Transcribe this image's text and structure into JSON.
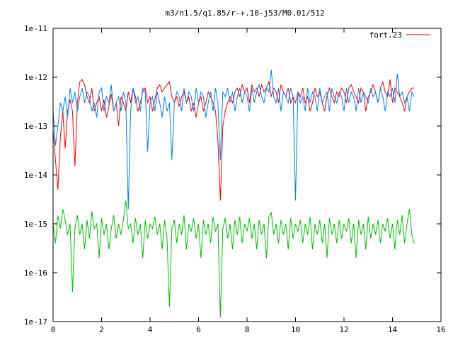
{
  "chart_data": {
    "type": "line",
    "title": "m3/n1.5/q1.85/r-+.10-j53/M0.01/512",
    "xlabel": "",
    "ylabel": "",
    "xlim": [
      0,
      16
    ],
    "ylim": [
      1e-17,
      1e-11
    ],
    "yscale": "log",
    "grid": false,
    "legend_position": "top-right",
    "x_ticks": [
      0,
      2,
      4,
      6,
      8,
      10,
      12,
      14,
      16
    ],
    "x_tick_labels": [
      "0",
      "2",
      "4",
      "6",
      "8",
      "10",
      "12",
      "14",
      "16"
    ],
    "y_ticks": [
      1e-17,
      1e-16,
      1e-15,
      1e-14,
      1e-13,
      1e-12,
      1e-11
    ],
    "y_tick_labels": [
      "1e-17",
      "1e-16",
      "1e-15",
      "1e-14",
      "1e-13",
      "1e-12",
      "1e-11"
    ],
    "series": [
      {
        "name": "fort.23",
        "color": "#ff0000",
        "x": [
          0.0,
          0.1,
          0.2,
          0.3,
          0.4,
          0.5,
          0.6,
          0.7,
          0.8,
          0.9,
          1.0,
          1.1,
          1.2,
          1.3,
          1.4,
          1.5,
          1.6,
          1.7,
          1.8,
          1.9,
          2.0,
          2.1,
          2.2,
          2.3,
          2.4,
          2.5,
          2.6,
          2.7,
          2.8,
          2.9,
          3.0,
          3.1,
          3.2,
          3.3,
          3.4,
          3.5,
          3.6,
          3.7,
          3.8,
          3.9,
          4.0,
          4.1,
          4.2,
          4.3,
          4.4,
          4.5,
          4.6,
          4.7,
          4.8,
          4.9,
          5.0,
          5.1,
          5.2,
          5.3,
          5.4,
          5.5,
          5.6,
          5.7,
          5.8,
          5.9,
          6.0,
          6.1,
          6.2,
          6.3,
          6.4,
          6.5,
          6.6,
          6.7,
          6.8,
          6.9,
          7.0,
          7.1,
          7.2,
          7.3,
          7.4,
          7.5,
          7.6,
          7.7,
          7.8,
          7.9,
          8.0,
          8.1,
          8.2,
          8.3,
          8.4,
          8.5,
          8.6,
          8.7,
          8.8,
          8.9,
          9.0,
          9.1,
          9.2,
          9.3,
          9.4,
          9.5,
          9.6,
          9.7,
          9.8,
          9.9,
          10.0,
          10.1,
          10.2,
          10.3,
          10.4,
          10.5,
          10.6,
          10.7,
          10.8,
          10.9,
          11.0,
          11.1,
          11.2,
          11.3,
          11.4,
          11.5,
          11.6,
          11.7,
          11.8,
          11.9,
          12.0,
          12.1,
          12.2,
          12.3,
          12.4,
          12.5,
          12.6,
          12.7,
          12.8,
          12.9,
          13.0,
          13.1,
          13.2,
          13.3,
          13.4,
          13.5,
          13.6,
          13.7,
          13.8,
          13.9,
          14.0,
          14.1,
          14.2,
          14.3,
          14.4,
          14.5,
          14.6,
          14.7,
          14.8,
          14.9
        ],
        "y": [
          8e-14,
          2e-14,
          5e-15,
          6e-14,
          2e-13,
          3.5e-14,
          2e-13,
          3.5e-13,
          2e-13,
          1.5e-14,
          3e-13,
          8e-13,
          9e-13,
          7e-13,
          4e-13,
          3e-13,
          6e-13,
          2e-13,
          3e-13,
          4e-13,
          2e-13,
          3.5e-13,
          1.5e-13,
          2.5e-13,
          4.5e-13,
          2e-13,
          3e-13,
          1e-13,
          4e-13,
          3e-13,
          2e-13,
          5e-13,
          3e-13,
          6e-13,
          4e-13,
          2e-13,
          3e-13,
          5e-13,
          6e-13,
          3e-13,
          4e-13,
          2e-13,
          3.5e-13,
          6e-13,
          7e-13,
          5e-13,
          6e-13,
          7e-13,
          8e-13,
          4e-13,
          3e-13,
          4e-13,
          2.5e-13,
          4e-13,
          5e-13,
          3e-13,
          4e-13,
          2e-13,
          3e-13,
          1.5e-13,
          3e-13,
          4e-13,
          2e-13,
          3e-13,
          5e-13,
          4e-13,
          3e-13,
          2e-13,
          5e-14,
          3e-15,
          1e-13,
          2e-13,
          3e-13,
          4e-13,
          3e-13,
          5e-13,
          6e-13,
          4e-13,
          7e-13,
          5e-13,
          6e-13,
          3e-13,
          7e-13,
          5e-13,
          6e-13,
          4e-13,
          7e-13,
          5e-13,
          6e-13,
          8e-13,
          4e-13,
          6e-13,
          5e-13,
          3e-13,
          7e-13,
          5e-13,
          4e-13,
          6e-13,
          3e-13,
          4e-13,
          3e-13,
          5e-13,
          4e-13,
          6e-13,
          3e-13,
          4e-13,
          2e-13,
          3e-13,
          6e-13,
          4e-13,
          5e-13,
          3e-13,
          2e-13,
          4e-13,
          6e-13,
          4e-13,
          3e-13,
          5e-13,
          4e-13,
          6e-13,
          5e-13,
          3e-13,
          6e-13,
          7e-13,
          5e-13,
          4e-13,
          3e-13,
          6e-13,
          5e-13,
          2e-13,
          4e-13,
          5e-13,
          7e-13,
          5e-13,
          3e-13,
          6e-13,
          8e-13,
          5e-13,
          4e-13,
          9e-13,
          3e-13,
          6e-13,
          5e-13,
          4e-13,
          3e-13,
          2e-13,
          4e-13,
          5e-13,
          6e-13,
          6e-13
        ]
      },
      {
        "name": "",
        "color": "#0080ff",
        "x": [
          0.0,
          0.1,
          0.2,
          0.3,
          0.4,
          0.5,
          0.6,
          0.7,
          0.8,
          0.9,
          1.0,
          1.1,
          1.2,
          1.3,
          1.4,
          1.5,
          1.6,
          1.7,
          1.8,
          1.9,
          2.0,
          2.1,
          2.2,
          2.3,
          2.4,
          2.5,
          2.6,
          2.7,
          2.8,
          2.9,
          3.0,
          3.1,
          3.2,
          3.3,
          3.4,
          3.5,
          3.6,
          3.7,
          3.8,
          3.9,
          4.0,
          4.1,
          4.2,
          4.3,
          4.4,
          4.5,
          4.6,
          4.7,
          4.8,
          4.9,
          5.0,
          5.1,
          5.2,
          5.3,
          5.4,
          5.5,
          5.6,
          5.7,
          5.8,
          5.9,
          6.0,
          6.1,
          6.2,
          6.3,
          6.4,
          6.5,
          6.6,
          6.7,
          6.8,
          6.9,
          7.0,
          7.1,
          7.2,
          7.3,
          7.4,
          7.5,
          7.6,
          7.7,
          7.8,
          7.9,
          8.0,
          8.1,
          8.2,
          8.3,
          8.4,
          8.5,
          8.6,
          8.7,
          8.8,
          8.9,
          9.0,
          9.1,
          9.2,
          9.3,
          9.4,
          9.5,
          9.6,
          9.7,
          9.8,
          9.9,
          10.0,
          10.1,
          10.2,
          10.3,
          10.4,
          10.5,
          10.6,
          10.7,
          10.8,
          10.9,
          11.0,
          11.1,
          11.2,
          11.3,
          11.4,
          11.5,
          11.6,
          11.7,
          11.8,
          11.9,
          12.0,
          12.1,
          12.2,
          12.3,
          12.4,
          12.5,
          12.6,
          12.7,
          12.8,
          12.9,
          13.0,
          13.1,
          13.2,
          13.3,
          13.4,
          13.5,
          13.6,
          13.7,
          13.8,
          13.9,
          14.0,
          14.1,
          14.2,
          14.3,
          14.4,
          14.5,
          14.6,
          14.7,
          14.8,
          14.9
        ],
        "y": [
          2e-13,
          4e-14,
          1e-13,
          3e-13,
          2e-13,
          4e-13,
          1.5e-13,
          6e-13,
          3e-13,
          5e-13,
          2e-13,
          4e-13,
          6e-13,
          3e-13,
          5e-13,
          4e-13,
          2e-13,
          3e-13,
          1.5e-13,
          5e-13,
          6e-13,
          2e-13,
          4e-13,
          3e-13,
          7e-13,
          2e-13,
          3e-13,
          4e-13,
          2e-13,
          5e-13,
          3e-13,
          2e-15,
          2e-13,
          6e-13,
          3e-13,
          4e-13,
          2e-13,
          6e-13,
          5e-13,
          3e-14,
          3e-13,
          4e-13,
          2e-13,
          5e-13,
          3e-13,
          1.5e-13,
          4e-13,
          2e-13,
          3e-13,
          2e-14,
          3e-13,
          5e-13,
          4e-13,
          2e-13,
          6e-13,
          3e-13,
          5e-13,
          4e-13,
          2e-13,
          6e-13,
          3e-13,
          5e-13,
          4e-13,
          1.5e-13,
          3e-13,
          5e-13,
          2e-13,
          6e-13,
          3e-13,
          2e-14,
          5e-13,
          4e-13,
          6e-13,
          3e-13,
          5e-13,
          2e-13,
          4e-13,
          6e-13,
          3e-13,
          5e-13,
          4e-13,
          2e-13,
          6e-13,
          3e-13,
          5e-13,
          7e-13,
          4e-13,
          3e-13,
          6e-13,
          5e-13,
          1.4e-12,
          4e-13,
          3e-13,
          6e-13,
          2e-13,
          5e-13,
          4e-13,
          3e-13,
          6e-13,
          4e-13,
          3e-15,
          5e-13,
          3e-13,
          4e-13,
          2e-13,
          6e-13,
          3e-13,
          5e-13,
          4e-13,
          2e-13,
          6e-13,
          3e-13,
          4e-13,
          5e-13,
          2e-13,
          6e-13,
          4e-13,
          3e-13,
          5e-13,
          4e-13,
          2e-13,
          6e-13,
          3e-13,
          5e-13,
          4e-13,
          2e-13,
          6e-13,
          3e-13,
          5e-13,
          4e-13,
          3e-13,
          6e-13,
          4e-13,
          5e-13,
          3e-13,
          6e-13,
          4e-13,
          2e-13,
          5e-13,
          4e-13,
          6e-13,
          3e-13,
          1.2e-12,
          4e-13,
          5e-13,
          3e-13,
          4e-13,
          2e-13,
          5e-13,
          4e-13
        ]
      },
      {
        "name": "",
        "color": "#00c000",
        "x": [
          0.0,
          0.1,
          0.2,
          0.3,
          0.4,
          0.5,
          0.6,
          0.7,
          0.8,
          0.9,
          1.0,
          1.1,
          1.2,
          1.3,
          1.4,
          1.5,
          1.6,
          1.7,
          1.8,
          1.9,
          2.0,
          2.1,
          2.2,
          2.3,
          2.4,
          2.5,
          2.6,
          2.7,
          2.8,
          2.9,
          3.0,
          3.1,
          3.2,
          3.3,
          3.4,
          3.5,
          3.6,
          3.7,
          3.8,
          3.9,
          4.0,
          4.1,
          4.2,
          4.3,
          4.4,
          4.5,
          4.6,
          4.7,
          4.8,
          4.9,
          5.0,
          5.1,
          5.2,
          5.3,
          5.4,
          5.5,
          5.6,
          5.7,
          5.8,
          5.9,
          6.0,
          6.1,
          6.2,
          6.3,
          6.4,
          6.5,
          6.6,
          6.7,
          6.8,
          6.9,
          7.0,
          7.1,
          7.2,
          7.3,
          7.4,
          7.5,
          7.6,
          7.7,
          7.8,
          7.9,
          8.0,
          8.1,
          8.2,
          8.3,
          8.4,
          8.5,
          8.6,
          8.7,
          8.8,
          8.9,
          9.0,
          9.1,
          9.2,
          9.3,
          9.4,
          9.5,
          9.6,
          9.7,
          9.8,
          9.9,
          10.0,
          10.1,
          10.2,
          10.3,
          10.4,
          10.5,
          10.6,
          10.7,
          10.8,
          10.9,
          11.0,
          11.1,
          11.2,
          11.3,
          11.4,
          11.5,
          11.6,
          11.7,
          11.8,
          11.9,
          12.0,
          12.1,
          12.2,
          12.3,
          12.4,
          12.5,
          12.6,
          12.7,
          12.8,
          12.9,
          13.0,
          13.1,
          13.2,
          13.3,
          13.4,
          13.5,
          13.6,
          13.7,
          13.8,
          13.9,
          14.0,
          14.1,
          14.2,
          14.3,
          14.4,
          14.5,
          14.6,
          14.7,
          14.8,
          14.9
        ],
        "y": [
          1e-15,
          4e-16,
          1.5e-15,
          8e-16,
          2e-15,
          1.2e-15,
          6e-16,
          1e-15,
          4e-17,
          8e-16,
          1.5e-15,
          6e-16,
          1e-15,
          3e-16,
          1.2e-15,
          5e-16,
          1.8e-15,
          8e-16,
          1e-15,
          2e-16,
          1.3e-15,
          6e-16,
          1e-15,
          3e-16,
          8e-16,
          1.5e-15,
          5e-16,
          1e-15,
          6e-16,
          1.2e-15,
          3e-15,
          8e-16,
          1e-15,
          4e-16,
          1.3e-15,
          6e-16,
          1e-15,
          2e-16,
          1.2e-15,
          5e-16,
          1e-15,
          8e-16,
          1.4e-15,
          6e-16,
          1e-15,
          3e-16,
          1.2e-15,
          5e-16,
          2e-17,
          8e-16,
          1.2e-15,
          4e-16,
          1e-15,
          6e-16,
          1.5e-15,
          3e-16,
          1e-15,
          7e-16,
          1.3e-15,
          5e-16,
          1e-15,
          2e-16,
          1.2e-15,
          6e-16,
          1e-15,
          4e-16,
          1.4e-15,
          7e-16,
          1e-15,
          1.2e-17,
          8e-16,
          1.3e-15,
          5e-16,
          1e-15,
          3e-16,
          1.2e-15,
          6e-16,
          1.4e-15,
          4e-16,
          1e-15,
          7e-16,
          1.3e-15,
          5e-16,
          1e-15,
          3e-16,
          1.2e-15,
          6e-16,
          1e-15,
          2e-16,
          1.4e-15,
          1.7e-15,
          6e-16,
          1e-15,
          4e-16,
          1.2e-15,
          6e-16,
          1e-15,
          3e-16,
          1.3e-15,
          5e-16,
          1e-15,
          7e-16,
          1.2e-15,
          4e-16,
          1e-15,
          6e-16,
          1.4e-15,
          3e-16,
          1e-15,
          6e-16,
          1.2e-15,
          4e-16,
          1e-15,
          2e-16,
          1.3e-15,
          6e-16,
          1e-15,
          4e-16,
          1.2e-15,
          5e-16,
          1e-15,
          7e-16,
          1.3e-15,
          4e-16,
          1e-15,
          2e-16,
          1.2e-15,
          6e-16,
          1e-15,
          3e-16,
          1.4e-15,
          5e-16,
          1e-15,
          6e-16,
          1.2e-15,
          4e-16,
          1e-15,
          7e-16,
          1.3e-15,
          5e-16,
          1e-15,
          3e-16,
          1.2e-15,
          6e-16,
          1.5e-15,
          4e-16,
          1e-15,
          2e-15,
          6e-16,
          4e-16
        ]
      }
    ]
  }
}
